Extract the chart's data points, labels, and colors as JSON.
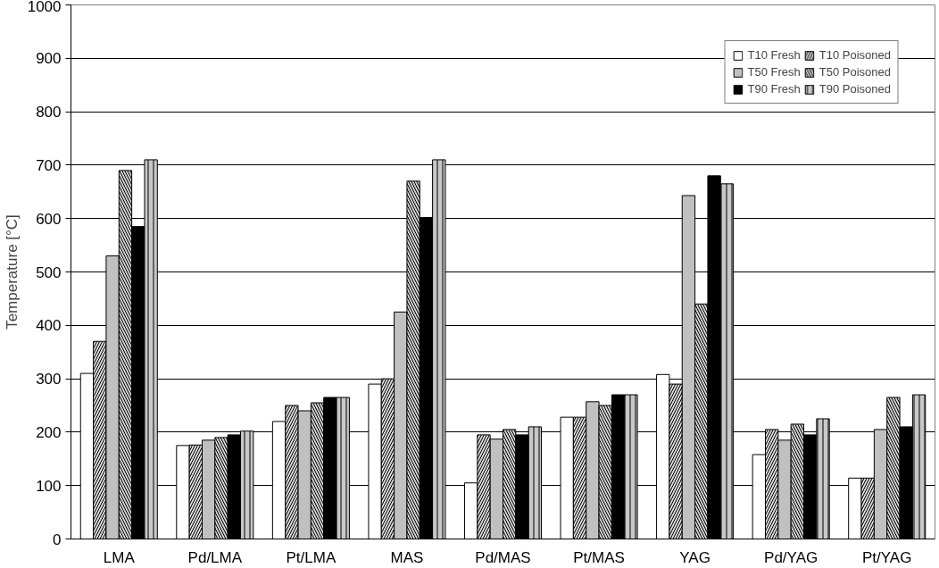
{
  "chart_data": {
    "type": "bar",
    "ylabel": "Temperature [°C]",
    "categories": [
      "LMA",
      "Pd/LMA",
      "Pt/LMA",
      "MAS",
      "Pd/MAS",
      "Pt/MAS",
      "YAG",
      "Pd/YAG",
      "Pt/YAG"
    ],
    "series": [
      {
        "name": "T10 Fresh",
        "color": "#ffffff",
        "values": [
          310,
          175,
          220,
          290,
          105,
          228,
          308,
          158,
          114
        ]
      },
      {
        "name": "T10 Poisoned",
        "color": "#d8d8d8",
        "values": [
          370,
          176,
          250,
          300,
          195,
          228,
          290,
          205,
          114
        ]
      },
      {
        "name": "T50 Fresh",
        "color": "#c0c0c0",
        "values": [
          530,
          185,
          240,
          425,
          187,
          257,
          643,
          185,
          205
        ]
      },
      {
        "name": "T50 Poisoned",
        "color": "#d0d0d0",
        "values": [
          690,
          190,
          255,
          670,
          205,
          250,
          440,
          215,
          265
        ]
      },
      {
        "name": "T90 Fresh",
        "color": "#000000",
        "values": [
          585,
          195,
          265,
          602,
          195,
          270,
          680,
          195,
          210
        ]
      },
      {
        "name": "T90 Poisoned",
        "color": "#c8c8c8",
        "values": [
          710,
          202,
          265,
          710,
          210,
          270,
          665,
          225,
          270
        ]
      }
    ],
    "ylim": [
      0,
      1000
    ],
    "yticks": [
      0,
      100,
      200,
      300,
      400,
      500,
      600,
      700,
      800,
      900,
      1000
    ],
    "grid": "y",
    "legend": "top right"
  }
}
